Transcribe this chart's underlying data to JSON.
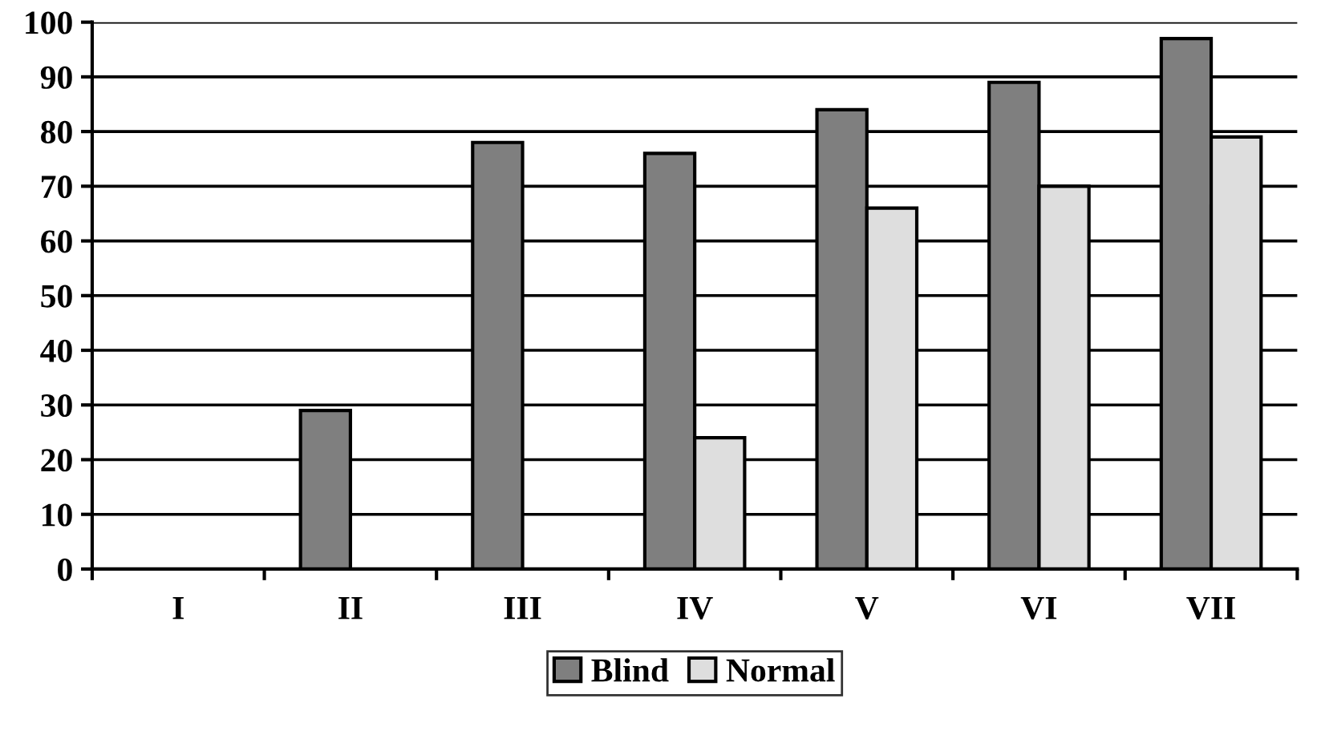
{
  "chart_data": {
    "type": "bar",
    "categories": [
      "I",
      "II",
      "III",
      "IV",
      "V",
      "VI",
      "VII"
    ],
    "series": [
      {
        "name": "Blind",
        "color": "#7f7f7f",
        "values": [
          null,
          29,
          78,
          76,
          84,
          89,
          97
        ]
      },
      {
        "name": "Normal",
        "color": "#dedede",
        "values": [
          null,
          null,
          null,
          24,
          66,
          70,
          79
        ]
      }
    ],
    "ylim": [
      0,
      100
    ],
    "yticks": [
      0,
      10,
      20,
      30,
      40,
      50,
      60,
      70,
      80,
      90,
      100
    ],
    "grid": "y",
    "legend": "bottom"
  }
}
